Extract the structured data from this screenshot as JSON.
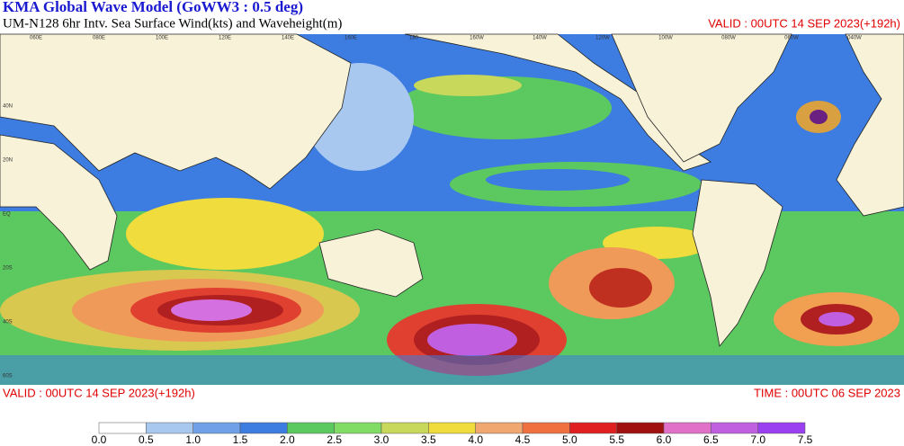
{
  "header": {
    "title": "KMA  Global Wave Model (GoWW3 : 0.5 deg)",
    "subtitle": "UM-N128  6hr Intv. Sea Surface Wind(kts) and Waveheight(m)",
    "valid_top": "VALID : 00UTC 14 SEP 2023(+192h)"
  },
  "map": {
    "lon_labels": [
      "060E",
      "080E",
      "100E",
      "120E",
      "140E",
      "160E",
      "180",
      "160W",
      "140W",
      "120W",
      "100W",
      "080W",
      "060W",
      "040W"
    ],
    "lat_labels": [
      "40N",
      "20N",
      "EQ",
      "20S",
      "40S",
      "60S"
    ]
  },
  "footer": {
    "valid": "VALID : 00UTC 14 SEP 2023(+192h)",
    "time": "TIME : 00UTC 06 SEP 2023"
  },
  "colorbar": {
    "labels": [
      "0.0",
      "0.5",
      "1.0",
      "1.5",
      "2.0",
      "2.5",
      "3.0",
      "3.5",
      "4.0",
      "4.5",
      "5.0",
      "5.5",
      "6.0",
      "6.5",
      "7.0",
      "7.5"
    ],
    "colors": [
      "#ffffff",
      "#a8c8f0",
      "#6fa0e8",
      "#3d7ce0",
      "#5cc860",
      "#80dc64",
      "#c8d85a",
      "#f0dc3c",
      "#f0a870",
      "#f07040",
      "#e02020",
      "#a01010",
      "#e070c8",
      "#c060e0",
      "#9a40f0"
    ]
  }
}
